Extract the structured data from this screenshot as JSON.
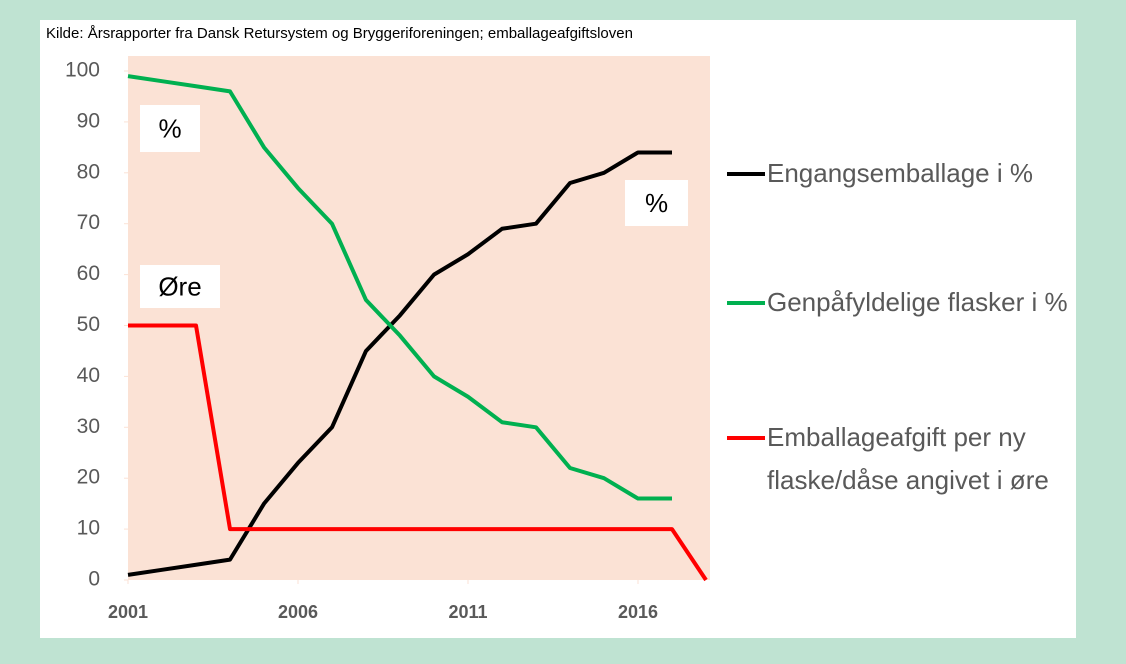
{
  "chart_data": {
    "type": "line",
    "source": "Kilde: Årsrapporter fra Dansk Retursystem og Bryggeriforeningen; emballageafgiftsloven",
    "x": [
      2001,
      2002,
      2003,
      2004,
      2005,
      2006,
      2007,
      2008,
      2009,
      2010,
      2011,
      2012,
      2013,
      2014,
      2015,
      2016,
      2017,
      2018
    ],
    "series": [
      {
        "name": "Engangsemballage i %",
        "color": "#000000",
        "values": [
          1,
          2,
          3,
          4,
          15,
          23,
          30,
          45,
          52,
          60,
          64,
          69,
          70,
          78,
          80,
          84,
          84,
          null
        ]
      },
      {
        "name": "Genpåfyldelige flasker i %",
        "color": "#00b050",
        "values": [
          99,
          98,
          97,
          96,
          85,
          77,
          70,
          55,
          48,
          40,
          36,
          31,
          30,
          22,
          20,
          16,
          16,
          null
        ]
      },
      {
        "name": "Emballageafgift per ny flaske/dåse angivet i øre",
        "color": "#ff0000",
        "values": [
          50,
          50,
          50,
          10,
          10,
          10,
          10,
          10,
          10,
          10,
          10,
          10,
          10,
          10,
          10,
          10,
          10,
          0
        ]
      }
    ],
    "annotations": [
      "%",
      "Øre",
      "%"
    ],
    "xlim": [
      2001,
      2018
    ],
    "xticks": [
      2001,
      2006,
      2011,
      2016
    ],
    "ylim": [
      0,
      100
    ],
    "yticks": [
      0,
      10,
      20,
      30,
      40,
      50,
      60,
      70,
      80,
      90,
      100
    ],
    "legend": "right"
  }
}
